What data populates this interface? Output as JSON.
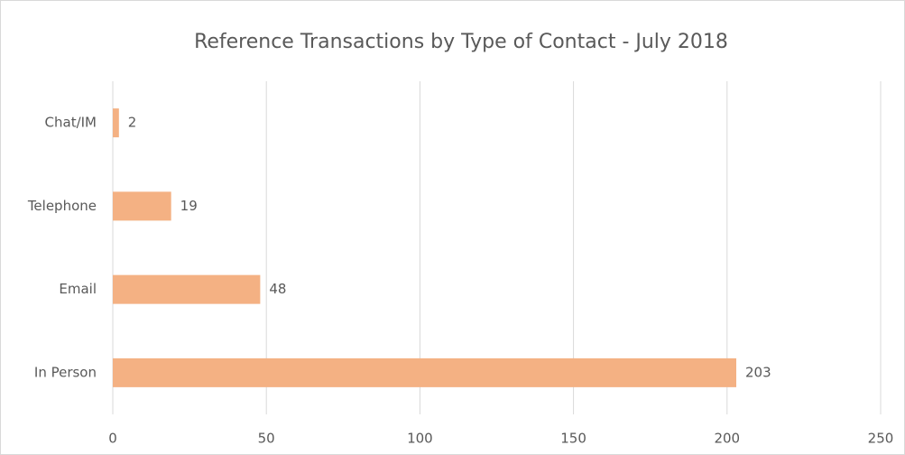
{
  "chart_data": {
    "type": "bar",
    "orientation": "horizontal",
    "title": "Reference Transactions by Type of Contact - July 2018",
    "categories": [
      "Chat/IM",
      "Telephone",
      "Email",
      "In Person"
    ],
    "values": [
      2,
      19,
      48,
      203
    ],
    "color": "#f4b183",
    "xlim": [
      0,
      250
    ],
    "xticks": [
      0,
      50,
      100,
      150,
      200,
      250
    ],
    "grid": true
  }
}
